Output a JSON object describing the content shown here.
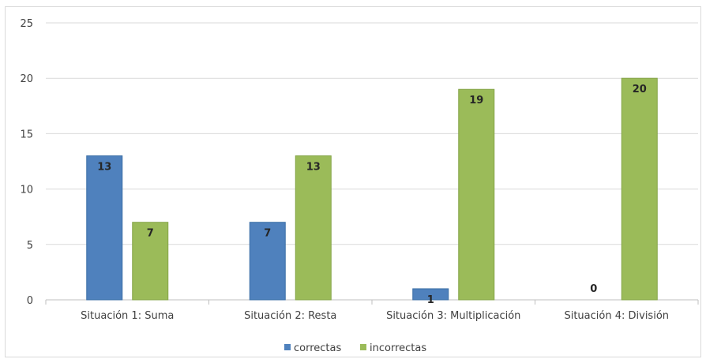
{
  "chart_data": {
    "type": "bar",
    "categories": [
      "Situación 1: Suma",
      "Situación 2: Resta",
      "Situación 3: Multiplicación",
      "Situación 4: División"
    ],
    "series": [
      {
        "name": "correctas",
        "values": [
          13,
          7,
          1,
          0
        ],
        "color": "#4f81bd"
      },
      {
        "name": "incorrectas",
        "values": [
          7,
          13,
          19,
          20
        ],
        "color": "#9bbb59"
      }
    ],
    "yticks": [
      0,
      5,
      10,
      15,
      20,
      25
    ],
    "ylim": [
      0,
      25
    ],
    "grid": true,
    "legend": "bottom",
    "data_labels": true
  }
}
